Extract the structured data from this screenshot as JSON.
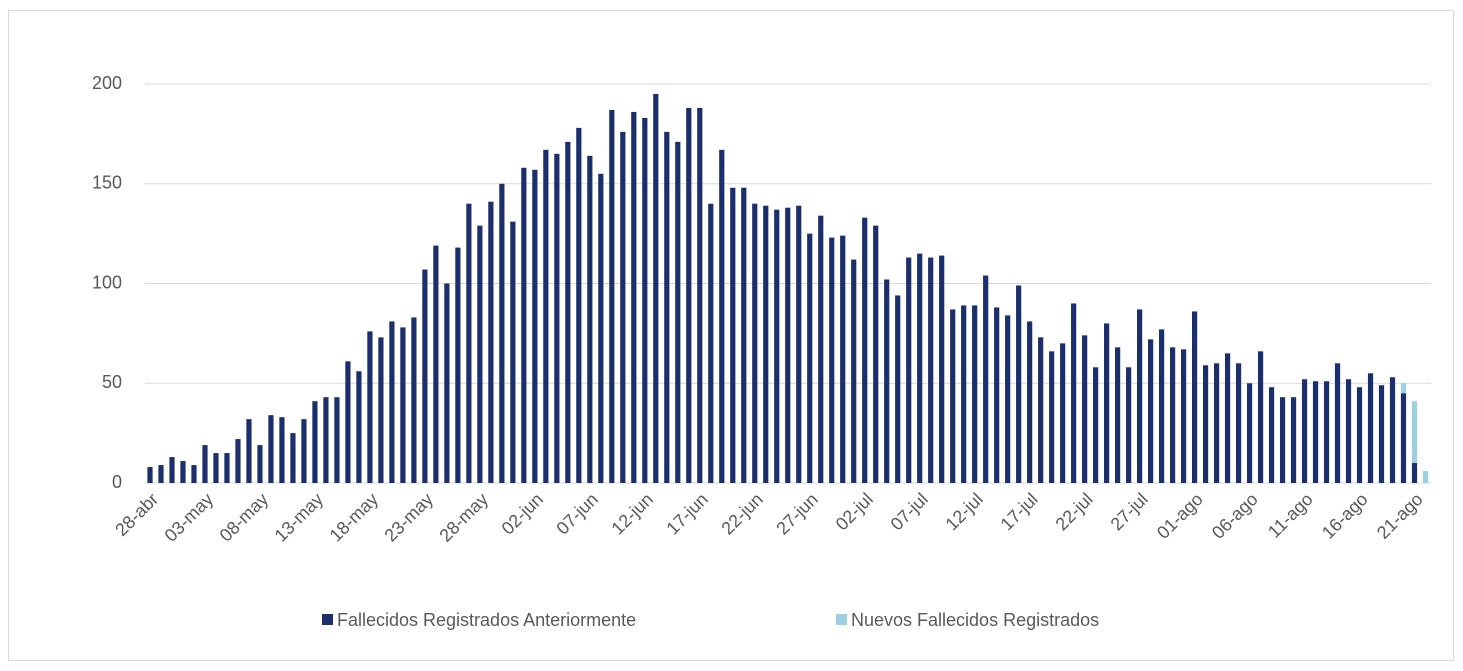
{
  "chart_data": {
    "type": "stacked-bar",
    "categories": [
      "28-abr",
      null,
      null,
      null,
      null,
      "03-may",
      null,
      null,
      null,
      null,
      "08-may",
      null,
      null,
      null,
      null,
      "13-may",
      null,
      null,
      null,
      null,
      "18-may",
      null,
      null,
      null,
      null,
      "23-may",
      null,
      null,
      null,
      null,
      "28-may",
      null,
      null,
      null,
      null,
      "02-jun",
      null,
      null,
      null,
      null,
      "07-jun",
      null,
      null,
      null,
      null,
      "12-jun",
      null,
      null,
      null,
      null,
      "17-jun",
      null,
      null,
      null,
      null,
      "22-jun",
      null,
      null,
      null,
      null,
      "27-jun",
      null,
      null,
      null,
      null,
      "02-jul",
      null,
      null,
      null,
      null,
      "07-jul",
      null,
      null,
      null,
      null,
      "12-jul",
      null,
      null,
      null,
      null,
      "17-jul",
      null,
      null,
      null,
      null,
      "22-jul",
      null,
      null,
      null,
      null,
      "27-jul",
      null,
      null,
      null,
      null,
      "01-ago",
      null,
      null,
      null,
      null,
      "06-ago",
      null,
      null,
      null,
      null,
      "11-ago",
      null,
      null,
      null,
      null,
      "16-ago",
      null,
      null,
      null,
      null,
      "21-ago",
      null
    ],
    "series": [
      {
        "name": "Fallecidos Registrados Anteriormente",
        "color": "#1c2e6b",
        "values": [
          8,
          9,
          13,
          11,
          9,
          19,
          15,
          15,
          22,
          32,
          19,
          34,
          33,
          25,
          32,
          41,
          43,
          43,
          61,
          56,
          76,
          73,
          81,
          78,
          83,
          107,
          119,
          100,
          118,
          140,
          129,
          141,
          150,
          131,
          158,
          157,
          167,
          165,
          171,
          178,
          164,
          155,
          187,
          176,
          186,
          183,
          195,
          176,
          171,
          188,
          188,
          140,
          167,
          148,
          148,
          140,
          139,
          137,
          138,
          139,
          125,
          134,
          123,
          124,
          112,
          133,
          129,
          102,
          94,
          113,
          115,
          113,
          114,
          87,
          89,
          89,
          104,
          88,
          84,
          99,
          81,
          73,
          66,
          70,
          90,
          74,
          58,
          80,
          68,
          58,
          87,
          72,
          77,
          68,
          67,
          86,
          59,
          60,
          65,
          60,
          50,
          66,
          48,
          43,
          43,
          52,
          51,
          51,
          60,
          52,
          48,
          55,
          49,
          53,
          45,
          10,
          null
        ]
      },
      {
        "name": "Nuevos Fallecidos Registrados",
        "color": "#9ccfe0",
        "values": [
          null,
          null,
          null,
          null,
          null,
          null,
          null,
          null,
          null,
          null,
          null,
          null,
          null,
          null,
          null,
          null,
          null,
          null,
          null,
          null,
          null,
          null,
          null,
          null,
          null,
          null,
          null,
          null,
          null,
          null,
          null,
          null,
          null,
          null,
          null,
          null,
          null,
          null,
          null,
          null,
          null,
          null,
          null,
          null,
          null,
          null,
          null,
          null,
          null,
          null,
          null,
          null,
          null,
          null,
          null,
          null,
          null,
          null,
          null,
          null,
          null,
          null,
          null,
          null,
          null,
          null,
          null,
          null,
          null,
          null,
          null,
          null,
          null,
          null,
          null,
          null,
          null,
          null,
          null,
          null,
          null,
          null,
          null,
          null,
          null,
          null,
          null,
          null,
          null,
          null,
          null,
          null,
          null,
          null,
          null,
          null,
          null,
          null,
          null,
          null,
          null,
          null,
          null,
          null,
          null,
          null,
          null,
          null,
          null,
          null,
          null,
          null,
          null,
          null,
          5,
          31,
          6
        ]
      }
    ],
    "ylim": [
      0,
      200
    ],
    "yticks": [
      0,
      50,
      100,
      150,
      200
    ],
    "grid": true,
    "legend": "bottom"
  }
}
